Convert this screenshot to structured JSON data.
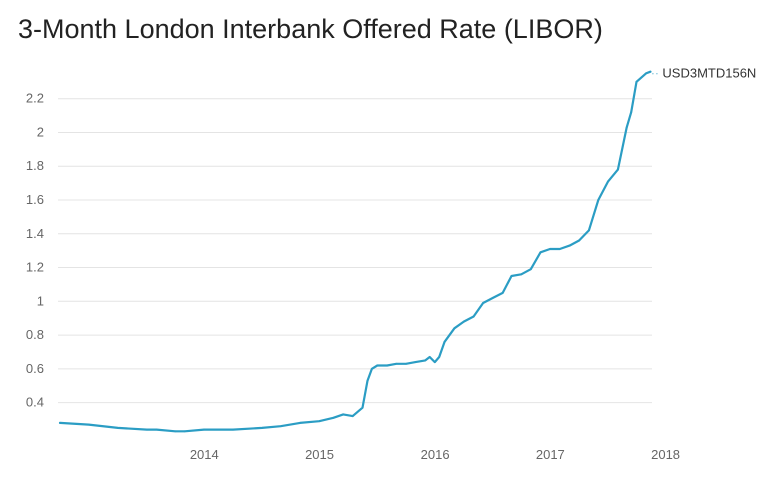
{
  "chart_data": {
    "type": "line",
    "title": "3-Month London Interbank Offered Rate (LIBOR)",
    "xlabel": "",
    "ylabel": "",
    "ylim": [
      0.22,
      2.37
    ],
    "xlim": [
      "2013-04-01",
      "2018-05-20"
    ],
    "y_ticks": [
      "0.4",
      "0.6",
      "0.8",
      "1",
      "1.2",
      "1.4",
      "1.6",
      "1.8",
      "2",
      "2.2"
    ],
    "x_ticks": [
      "2014",
      "2015",
      "2016",
      "2017",
      "2018"
    ],
    "grid": "horizontal",
    "colors": {
      "line": "#2b9dc4",
      "grid": "#e4e4e4",
      "tick_text": "#666666"
    },
    "series": [
      {
        "name": "USD3MTD156N",
        "x": [
          "2013-04-01",
          "2013-07-01",
          "2013-10-01",
          "2014-01-01",
          "2014-02-01",
          "2014-04-01",
          "2014-05-01",
          "2014-07-01",
          "2014-10-01",
          "2015-01-01",
          "2015-03-01",
          "2015-05-01",
          "2015-07-01",
          "2015-08-15",
          "2015-09-15",
          "2015-10-15",
          "2015-11-15",
          "2015-12-01",
          "2015-12-15",
          "2016-01-01",
          "2016-02-01",
          "2016-03-01",
          "2016-04-01",
          "2016-05-01",
          "2016-06-01",
          "2016-06-15",
          "2016-07-01",
          "2016-07-15",
          "2016-08-01",
          "2016-09-01",
          "2016-10-01",
          "2016-11-01",
          "2016-12-01",
          "2017-01-01",
          "2017-02-01",
          "2017-03-01",
          "2017-04-01",
          "2017-05-01",
          "2017-06-01",
          "2017-07-01",
          "2017-08-01",
          "2017-09-01",
          "2017-10-01",
          "2017-11-01",
          "2017-12-01",
          "2018-01-01",
          "2018-02-01",
          "2018-03-01",
          "2018-03-15",
          "2018-04-01",
          "2018-05-01",
          "2018-05-15"
        ],
        "values": [
          0.28,
          0.27,
          0.25,
          0.24,
          0.24,
          0.23,
          0.23,
          0.24,
          0.24,
          0.25,
          0.26,
          0.28,
          0.29,
          0.31,
          0.33,
          0.32,
          0.37,
          0.53,
          0.6,
          0.62,
          0.62,
          0.63,
          0.63,
          0.64,
          0.65,
          0.67,
          0.64,
          0.67,
          0.76,
          0.84,
          0.88,
          0.91,
          0.99,
          1.02,
          1.05,
          1.15,
          1.16,
          1.19,
          1.29,
          1.31,
          1.31,
          1.33,
          1.36,
          1.42,
          1.6,
          1.71,
          1.78,
          2.03,
          2.12,
          2.3,
          2.35,
          2.36
        ]
      }
    ]
  }
}
